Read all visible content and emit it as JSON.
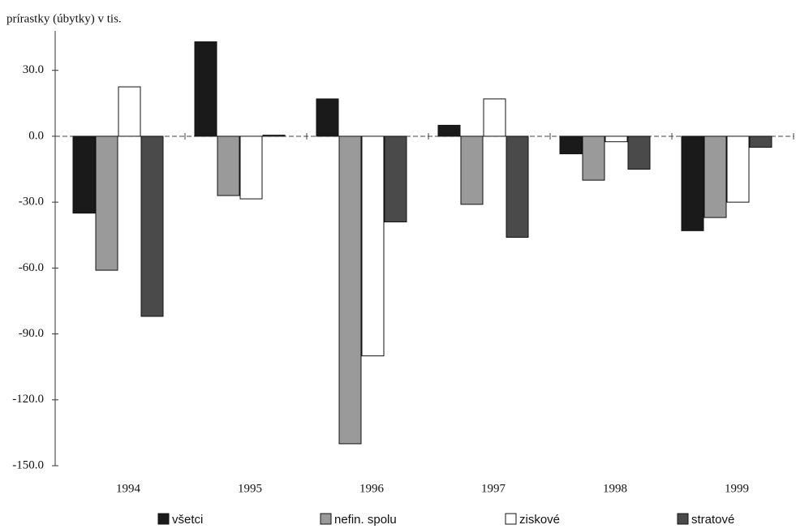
{
  "chart_data": {
    "type": "bar",
    "y_label": "prírastky (úbytky) v tis.",
    "categories": [
      "1994",
      "1995",
      "1996",
      "1997",
      "1998",
      "1999"
    ],
    "series": [
      {
        "name": "všetci",
        "color": "#1a1a1a",
        "values": [
          -35,
          43,
          17,
          5,
          -8,
          -43
        ]
      },
      {
        "name": "nefin. spolu",
        "color": "#9a9a9a",
        "values": [
          -61,
          -27,
          -140,
          -31,
          -20,
          -37
        ]
      },
      {
        "name": "ziskové",
        "color": "#ffffff",
        "values": [
          22.5,
          -28.5,
          -100,
          17,
          -2.5,
          -30
        ]
      },
      {
        "name": "stratové",
        "color": "#4a4a4a",
        "values": [
          -82,
          0.5,
          -39,
          -46,
          -15,
          -5
        ]
      }
    ],
    "ylim": [
      -150,
      48
    ],
    "yticks": [
      {
        "value": -150,
        "label": "-150.0"
      },
      {
        "value": -120,
        "label": "-120.0"
      },
      {
        "value": -90,
        "label": "-90.0"
      },
      {
        "value": -60,
        "label": "-60.0"
      },
      {
        "value": -30,
        "label": "-30.0"
      },
      {
        "value": 0,
        "label": "0.0"
      },
      {
        "value": 30,
        "label": "30.0"
      }
    ],
    "legend": "bottom"
  }
}
